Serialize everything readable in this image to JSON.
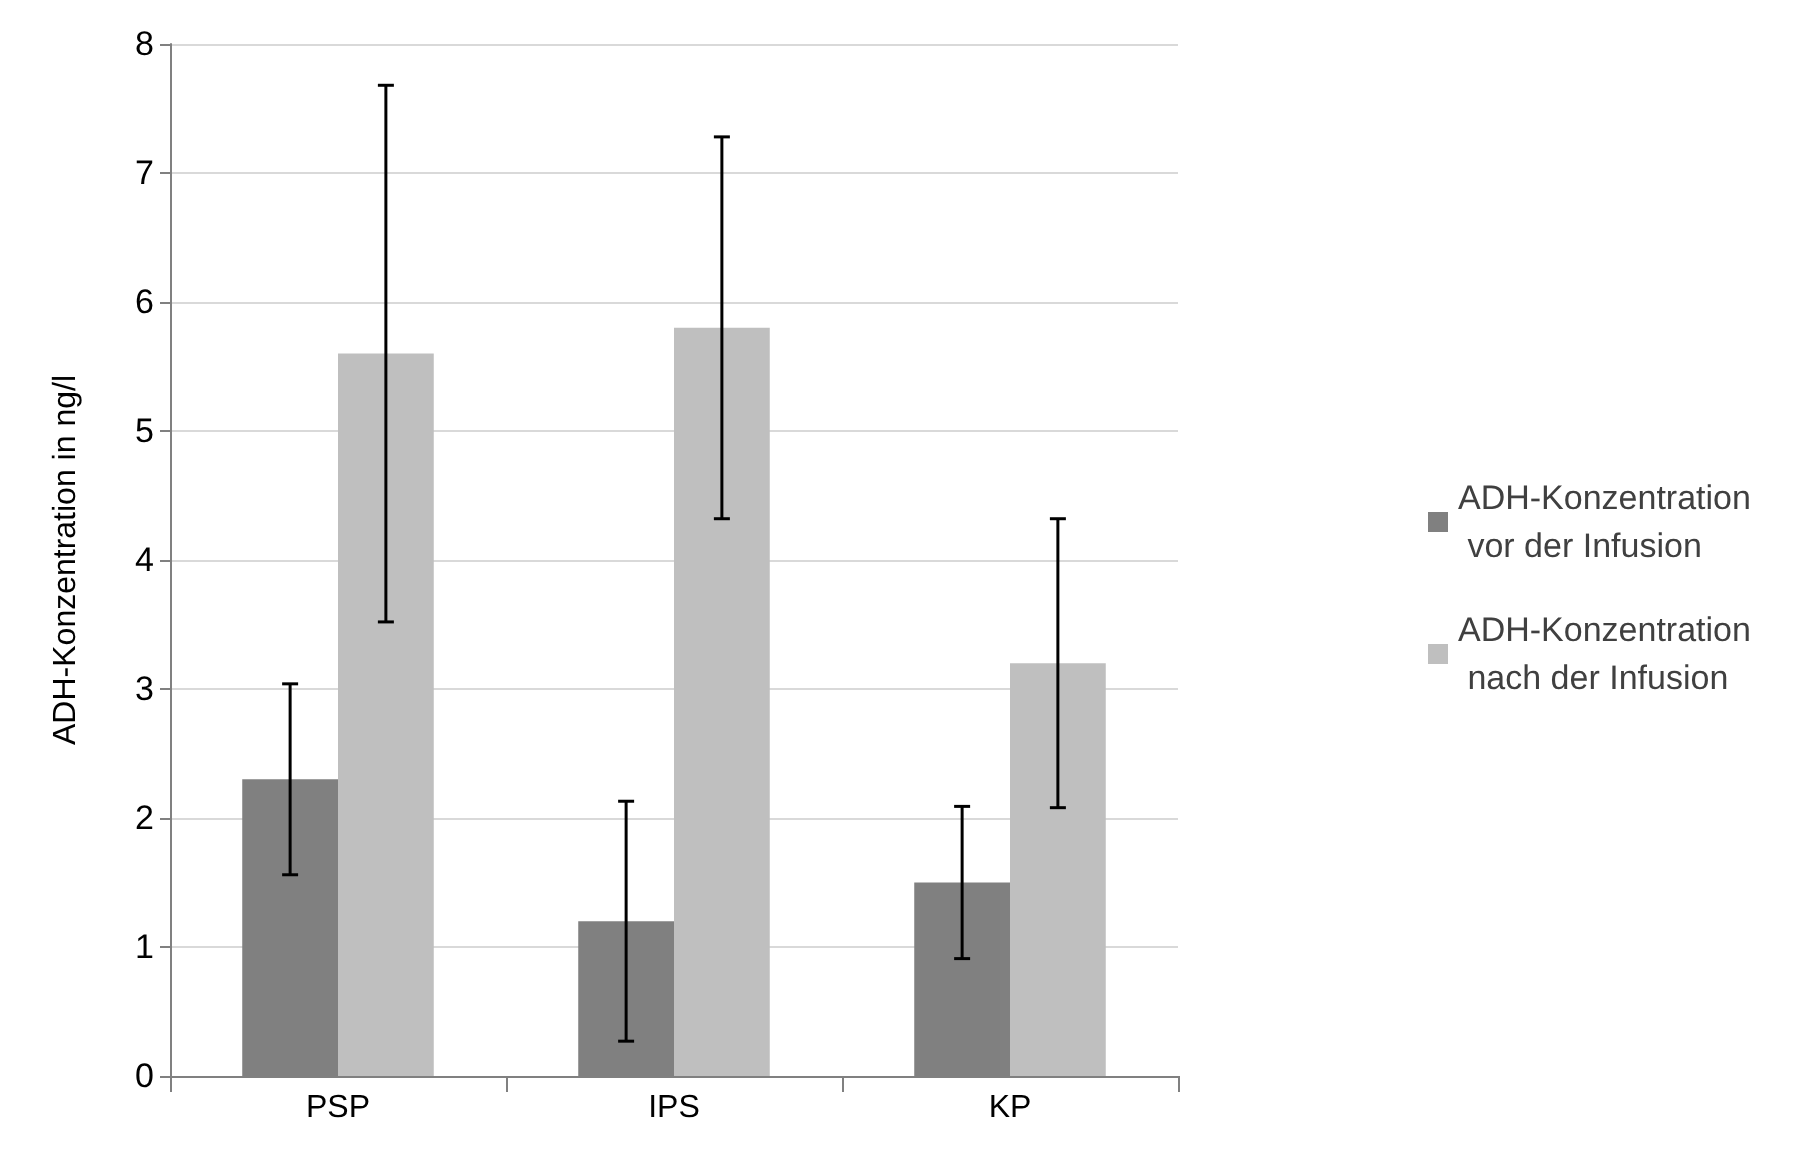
{
  "chart_data": {
    "type": "bar",
    "ylabel": "ADH-Konzentration in ng/l",
    "categories": [
      "PSP",
      "IPS",
      "KP"
    ],
    "series": [
      {
        "name": "ADH-Konzentration vor der Infusion",
        "color": "#808080",
        "values": [
          2.3,
          1.2,
          1.5
        ],
        "errors": [
          [
            1.56,
            3.04
          ],
          [
            0.27,
            2.13
          ],
          [
            0.91,
            2.09
          ]
        ]
      },
      {
        "name": "ADH-Konzentration nach der Infusion",
        "color": "#bfbfbf",
        "values": [
          5.6,
          5.8,
          3.2
        ],
        "errors": [
          [
            3.52,
            7.68
          ],
          [
            4.32,
            7.28
          ],
          [
            2.08,
            4.32
          ]
        ]
      }
    ],
    "ylim": [
      0,
      8
    ],
    "yticks": [
      0,
      1,
      2,
      3,
      4,
      5,
      6,
      7,
      8
    ],
    "grid": "y",
    "legend": "right"
  }
}
